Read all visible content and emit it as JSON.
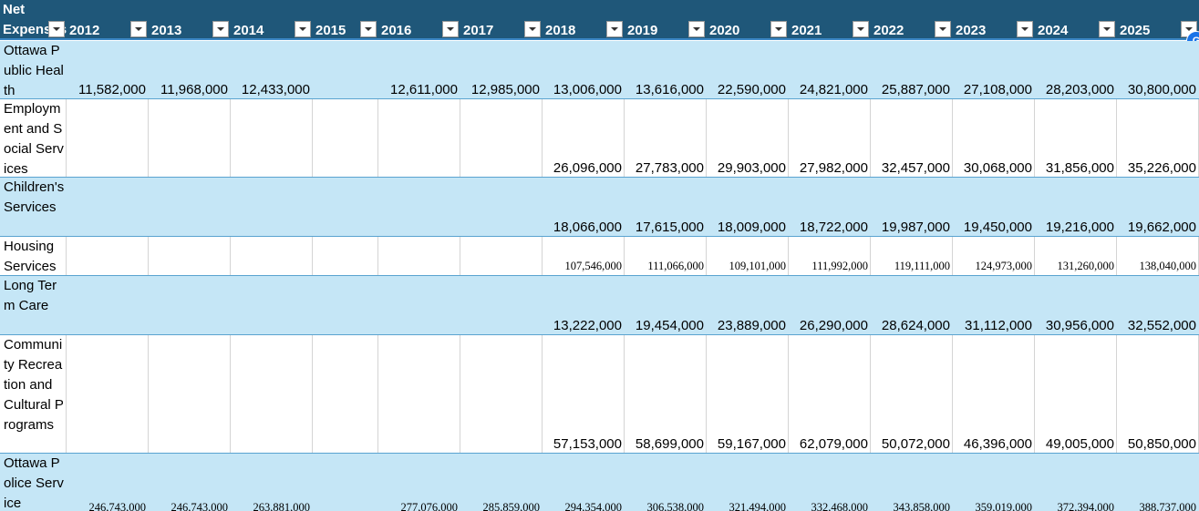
{
  "header": {
    "first_column": "Net Expenses",
    "years": [
      "2012",
      "2013",
      "2014",
      "2015",
      "2016",
      "2017",
      "2018",
      "2019",
      "2020",
      "2021",
      "2022",
      "2023",
      "2024",
      "2025"
    ]
  },
  "badge_letter": "G",
  "rows": [
    {
      "label": "Ottawa Public Health",
      "values": [
        "11,582,000",
        "11,968,000",
        "12,433,000",
        "",
        "12,611,000",
        "12,985,000",
        "13,006,000",
        "13,616,000",
        "22,590,000",
        "24,821,000",
        "25,887,000",
        "27,108,000",
        "28,203,000",
        "30,800,000"
      ]
    },
    {
      "label": "Employment and Social Services",
      "values": [
        "",
        "",
        "",
        "",
        "",
        "",
        "26,096,000",
        "27,783,000",
        "29,903,000",
        "27,982,000",
        "32,457,000",
        "30,068,000",
        "31,856,000",
        "35,226,000"
      ]
    },
    {
      "label": "Children's Services",
      "values": [
        "",
        "",
        "",
        "",
        "",
        "",
        "18,066,000",
        "17,615,000",
        "18,009,000",
        "18,722,000",
        "19,987,000",
        "19,450,000",
        "19,216,000",
        "19,662,000"
      ]
    },
    {
      "label": "Housing Services",
      "values": [
        "",
        "",
        "",
        "",
        "",
        "",
        "107,546,000",
        "111,066,000",
        "109,101,000",
        "111,992,000",
        "119,111,000",
        "124,973,000",
        "131,260,000",
        "138,040,000"
      ]
    },
    {
      "label": "Long Term Care",
      "values": [
        "",
        "",
        "",
        "",
        "",
        "",
        "13,222,000",
        "19,454,000",
        "23,889,000",
        "26,290,000",
        "28,624,000",
        "31,112,000",
        "30,956,000",
        "32,552,000"
      ]
    },
    {
      "label": "Community Recreation and Cultural Programs",
      "values": [
        "",
        "",
        "",
        "",
        "",
        "",
        "57,153,000",
        "58,699,000",
        "59,167,000",
        "62,079,000",
        "50,072,000",
        "46,396,000",
        "49,005,000",
        "50,850,000"
      ]
    },
    {
      "label": "Ottawa Police Service",
      "values": [
        "246,743,000",
        "246,743,000",
        "263,881,000",
        "",
        "277,076,000",
        "285,859,000",
        "294,354,000",
        "306,538,000",
        "321,494,000",
        "332,468,000",
        "343,858,000",
        "359,019,000",
        "372,394,000",
        "388,737,000"
      ]
    }
  ]
}
